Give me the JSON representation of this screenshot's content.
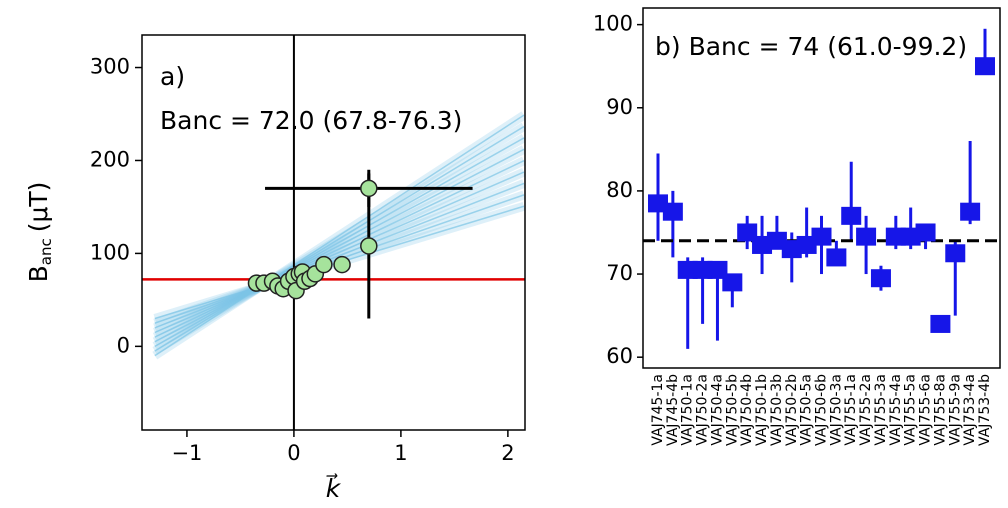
{
  "chart_data": [
    {
      "type": "scatter",
      "panel_label": "a)",
      "annotation": "Banc = 72.0 (67.8-76.3)",
      "ylabel": "B",
      "ylabel_sub": "anc",
      "ylabel_unit": "(μT)",
      "xlabel": "k⃗",
      "x": [
        -0.35,
        -0.28,
        -0.2,
        -0.15,
        -0.1,
        -0.05,
        0.0,
        0.02,
        0.05,
        0.08,
        0.1,
        0.15,
        0.2,
        0.28,
        0.45,
        0.7,
        0.7
      ],
      "values": [
        68,
        68,
        70,
        65,
        62,
        70,
        75,
        60,
        78,
        80,
        70,
        73,
        78,
        88,
        88,
        108,
        170
      ],
      "xerr": [
        null,
        null,
        null,
        null,
        null,
        null,
        null,
        null,
        null,
        null,
        null,
        null,
        null,
        null,
        null,
        null,
        0.97
      ],
      "yerr": [
        null,
        null,
        null,
        null,
        null,
        null,
        null,
        null,
        null,
        null,
        null,
        null,
        null,
        null,
        null,
        78,
        20
      ],
      "color": "#a6e39c",
      "fit_lines": [
        {
          "slope": 35,
          "intercept": 75.5
        },
        {
          "slope": 40,
          "intercept": 77
        },
        {
          "slope": 45,
          "intercept": 78.5
        },
        {
          "slope": 50,
          "intercept": 80
        },
        {
          "slope": 55,
          "intercept": 81.5
        },
        {
          "slope": 60,
          "intercept": 83
        },
        {
          "slope": 65,
          "intercept": 84.5
        },
        {
          "slope": 70,
          "intercept": 86
        },
        {
          "slope": 75,
          "intercept": 87.5
        }
      ],
      "fit_xrange": [
        -1.3,
        2.15
      ],
      "fit_color": "#7cc4e6",
      "hline": 72,
      "hline_color": "#e00000",
      "vline": 0,
      "xlim": [
        -1.42,
        2.16
      ],
      "xticks": [
        {
          "value": -1,
          "label": "−1"
        },
        0,
        1,
        2
      ],
      "ylim": [
        -90,
        335
      ],
      "yticks": [
        0,
        100,
        200,
        300
      ]
    },
    {
      "type": "errorbar",
      "annotation": "b) Banc = 74 (61.0-99.2)",
      "categories": [
        "VAJ745-1a",
        "VAJ745-4b",
        "VAJ750-1a",
        "VAJ750-2a",
        "VAJ750-4a",
        "VAJ750-5b",
        "VAJ750-4b",
        "VAJ750-1b",
        "VAJ750-3b",
        "VAJ750-2b",
        "VAJ750-5a",
        "VAJ750-6b",
        "VAJ750-3a",
        "VAJ755-1a",
        "VAJ755-2a",
        "VAJ755-3a",
        "VAJ755-4a",
        "VAJ755-5a",
        "VAJ755-6a",
        "VAJ755-8a",
        "VAJ755-9a",
        "VAJ753-4a",
        "VAJ753-4b"
      ],
      "values": [
        78.5,
        77.5,
        70.5,
        70.5,
        70.5,
        69,
        75,
        73.5,
        74,
        73,
        73.5,
        74.5,
        72,
        77,
        74.5,
        69.5,
        74.5,
        74.5,
        75,
        64,
        72.5,
        77.5,
        95
      ],
      "lower": [
        74,
        72,
        61,
        64,
        62,
        66,
        73,
        70,
        73,
        69,
        72,
        70,
        71,
        74,
        70,
        68,
        73,
        73,
        73,
        63,
        65,
        76,
        94
      ],
      "upper": [
        84.5,
        80,
        72,
        72,
        71,
        70,
        77,
        77,
        77,
        75,
        78,
        77,
        74,
        83.5,
        77,
        71,
        77,
        78,
        76,
        65,
        74,
        86,
        99.5
      ],
      "color": "#1616e8",
      "hline": 74,
      "hline_color": "#000000",
      "ylim": [
        58.7,
        102
      ],
      "yticks": [
        60,
        70,
        80,
        90,
        100
      ]
    }
  ]
}
